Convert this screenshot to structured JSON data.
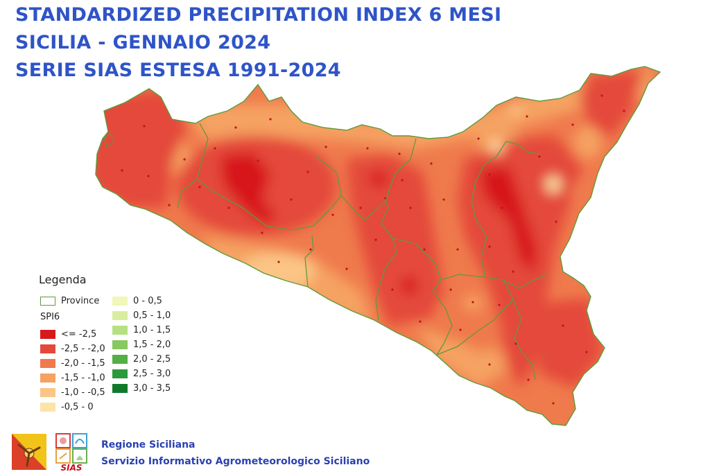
{
  "title": {
    "line1": "STANDARDIZED PRECIPITATION INDEX 6 MESI",
    "line2": "SICILIA -  GENNAIO 2024",
    "line3": "SERIE SIAS ESTESA 1991-2024"
  },
  "legend": {
    "title": "Legenda",
    "province_label": "Province",
    "province_color": "#5e9a3c",
    "spi_label": "SPI6",
    "classes": [
      {
        "label": "<= -2,5",
        "color": "#d7191c"
      },
      {
        "label": "-2,5 - -2,0",
        "color": "#e4483a"
      },
      {
        "label": "-2,0 - -1,5",
        "color": "#ef7a4c"
      },
      {
        "label": "-1,5 - -1,0",
        "color": "#f5a262"
      },
      {
        "label": "-1,0 - -0,5",
        "color": "#fbc585"
      },
      {
        "label": "-0,5 - 0",
        "color": "#fde3a7"
      },
      {
        "label": "0 - 0,5",
        "color": "#f1f7b8"
      },
      {
        "label": "0,5 - 1,0",
        "color": "#d7eea0"
      },
      {
        "label": "1,0 - 1,5",
        "color": "#b6e082"
      },
      {
        "label": "1,5 - 2,0",
        "color": "#86c95e"
      },
      {
        "label": "2,0 - 2,5",
        "color": "#52b046"
      },
      {
        "label": "2,5 - 3,0",
        "color": "#2a9a3c"
      },
      {
        "label": "3,0 - 3,5",
        "color": "#107a2c"
      }
    ]
  },
  "footer": {
    "line1": "Regione Siciliana",
    "line2": "Servizio Informativo Agrometeorologico Siciliano"
  },
  "logos": {
    "sias_text": "SIAS",
    "trinacria_icon": "trinacria-icon"
  },
  "colors": {
    "title": "#2f54c8",
    "footer": "#2a41b0",
    "station_dot": "#c0141c"
  }
}
